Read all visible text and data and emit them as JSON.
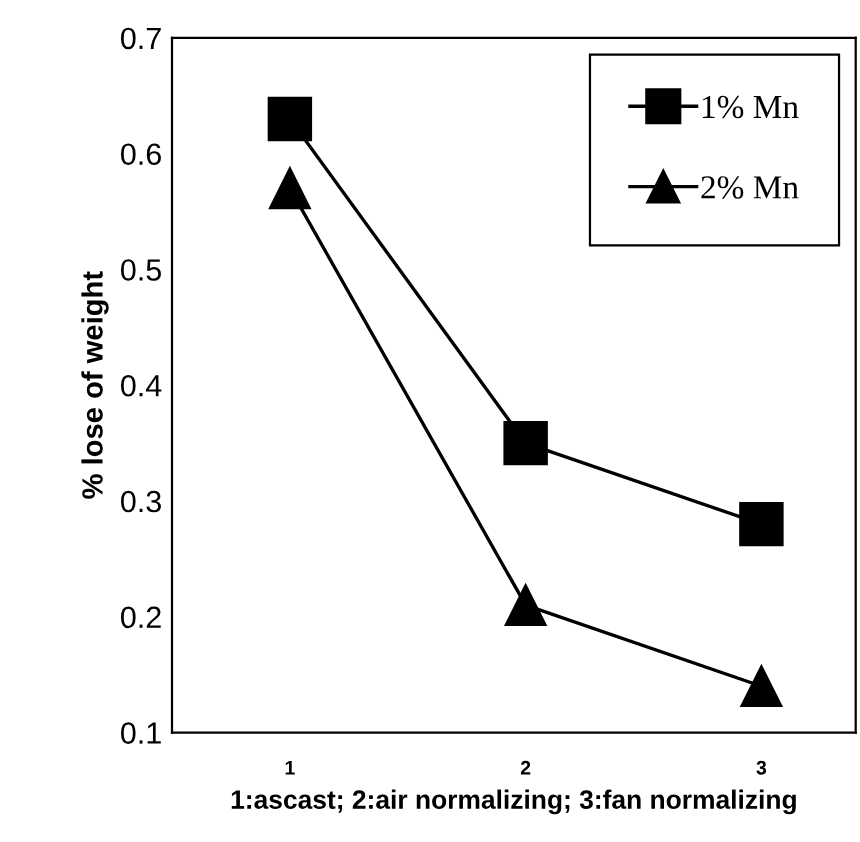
{
  "chart_data": {
    "type": "line",
    "xlabel": "1:ascast; 2:air normalizing; 3:fan normalizing",
    "ylabel": "% lose of weight",
    "categories": [
      "1",
      "2",
      "3"
    ],
    "series": [
      {
        "name": "1% Mn",
        "color": "#000000",
        "marker": "square",
        "values": [
          0.63,
          0.35,
          0.28
        ]
      },
      {
        "name": "2% Mn",
        "color": "#000000",
        "marker": "triangle",
        "values": [
          0.57,
          0.21,
          0.14
        ]
      }
    ],
    "ylim": [
      0.1,
      0.7
    ],
    "yticks": [
      0.1,
      0.2,
      0.3,
      0.4,
      0.5,
      0.6,
      0.7
    ],
    "grid": false,
    "legend": "top right",
    "line_style": "solid"
  }
}
